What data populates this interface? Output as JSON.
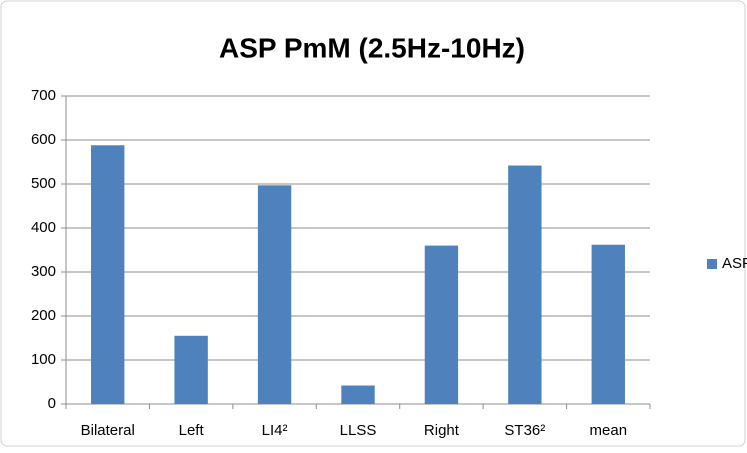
{
  "chart_data": {
    "type": "bar",
    "title": "ASP PmM (2.5Hz-10Hz)",
    "categories": [
      "Bilateral",
      "Left",
      "LI4²",
      "LLSS",
      "Right",
      "ST36²",
      "mean"
    ],
    "series": [
      {
        "name": "ASP",
        "color": "#4f81bd",
        "values": [
          588,
          155,
          497,
          42,
          360,
          542,
          362
        ]
      }
    ],
    "ylim": [
      0,
      700
    ],
    "yticks": [
      0,
      100,
      200,
      300,
      400,
      500,
      600,
      700
    ],
    "grid": true,
    "legend": "right"
  }
}
